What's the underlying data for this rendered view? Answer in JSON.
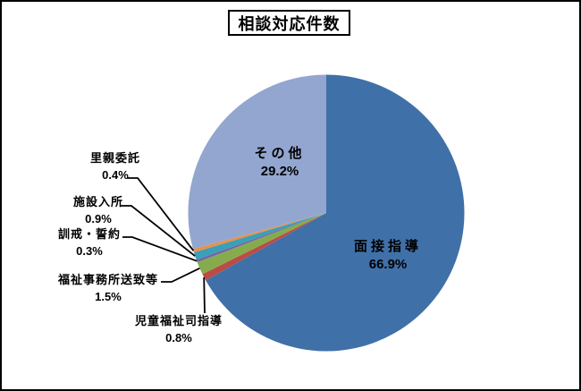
{
  "title": "相談対応件数",
  "chart_data": {
    "type": "pie",
    "title": "相談対応件数",
    "start_angle_deg": 0,
    "direction": "clockwise",
    "legend": "none",
    "slices": [
      {
        "label": "面接指導",
        "value": 66.9,
        "pct_label": "66.9%",
        "color": "#4070A8",
        "label_position": "inside"
      },
      {
        "label": "児童福祉司指導",
        "value": 0.8,
        "pct_label": "0.8%",
        "color": "#BC4B45",
        "label_position": "outside"
      },
      {
        "label": "福祉事務所送致等",
        "value": 1.5,
        "pct_label": "1.5%",
        "color": "#86AB4F",
        "label_position": "outside"
      },
      {
        "label": "訓戒・誓約",
        "value": 0.3,
        "pct_label": "0.3%",
        "color": "#7362A5",
        "label_position": "outside"
      },
      {
        "label": "施設入所",
        "value": 0.9,
        "pct_label": "0.9%",
        "color": "#3B9FB8",
        "label_position": "outside"
      },
      {
        "label": "里親委託",
        "value": 0.4,
        "pct_label": "0.4%",
        "color": "#E89149",
        "label_position": "outside"
      },
      {
        "label": "その他",
        "value": 29.2,
        "pct_label": "29.2%",
        "color": "#93A6CF",
        "label_position": "inside"
      }
    ],
    "leader_line_color": "#000000",
    "text_color": "#000000",
    "background_color": "#FFFFFF"
  }
}
